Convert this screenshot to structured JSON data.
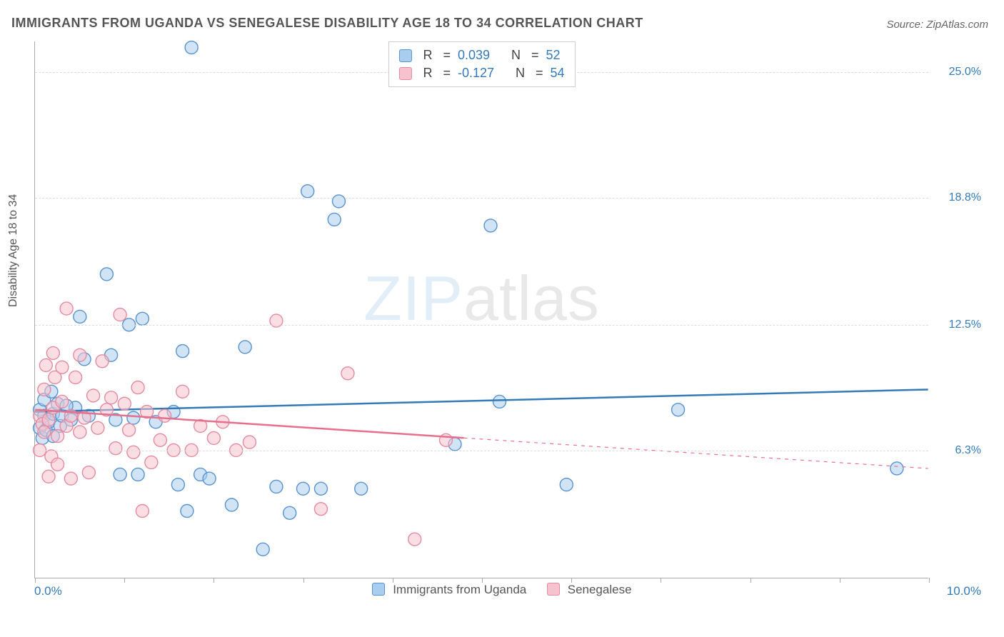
{
  "title": "IMMIGRANTS FROM UGANDA VS SENEGALESE DISABILITY AGE 18 TO 34 CORRELATION CHART",
  "source": "Source: ZipAtlas.com",
  "ylabel": "Disability Age 18 to 34",
  "watermark_a": "ZIP",
  "watermark_b": "atlas",
  "chart": {
    "type": "scatter",
    "xlim": [
      0,
      10
    ],
    "ylim": [
      0,
      26.5
    ],
    "x_tick_positions": [
      0,
      1,
      2,
      3,
      4,
      5,
      6,
      7,
      8,
      9,
      10
    ],
    "x_left_label": "0.0%",
    "x_right_label": "10.0%",
    "y_grid": [
      {
        "v": 6.3,
        "label": "6.3%"
      },
      {
        "v": 12.5,
        "label": "12.5%"
      },
      {
        "v": 18.8,
        "label": "18.8%"
      },
      {
        "v": 25.0,
        "label": "25.0%"
      }
    ],
    "marker_radius": 9,
    "marker_opacity": 0.55,
    "line_width": 2.5,
    "series": [
      {
        "name": "Immigrants from Uganda",
        "color_fill": "#a9cdee",
        "color_stroke": "#5892cf",
        "line_color": "#337ab7",
        "trend": {
          "x1": 0,
          "y1": 8.2,
          "x2": 10,
          "y2": 9.3,
          "x_solid_end": 10
        },
        "stats": {
          "R": "0.039",
          "N": "52"
        },
        "points": [
          [
            0.05,
            7.4
          ],
          [
            0.05,
            8.3
          ],
          [
            0.08,
            6.9
          ],
          [
            0.1,
            8.0
          ],
          [
            0.1,
            8.8
          ],
          [
            0.12,
            7.3
          ],
          [
            0.15,
            7.7
          ],
          [
            0.18,
            9.2
          ],
          [
            0.2,
            8.1
          ],
          [
            0.2,
            7.0
          ],
          [
            0.25,
            8.6
          ],
          [
            0.28,
            7.5
          ],
          [
            0.3,
            8.0
          ],
          [
            0.4,
            7.8
          ],
          [
            0.45,
            8.4
          ],
          [
            0.5,
            12.9
          ],
          [
            0.55,
            10.8
          ],
          [
            0.8,
            15.0
          ],
          [
            0.85,
            11.0
          ],
          [
            0.9,
            7.8
          ],
          [
            0.95,
            5.1
          ],
          [
            1.05,
            12.5
          ],
          [
            1.1,
            7.9
          ],
          [
            1.15,
            5.1
          ],
          [
            1.2,
            12.8
          ],
          [
            1.35,
            7.7
          ],
          [
            1.55,
            8.2
          ],
          [
            1.6,
            4.6
          ],
          [
            1.65,
            11.2
          ],
          [
            1.7,
            3.3
          ],
          [
            1.75,
            26.2
          ],
          [
            1.85,
            5.1
          ],
          [
            1.95,
            4.9
          ],
          [
            2.2,
            3.6
          ],
          [
            2.35,
            11.4
          ],
          [
            2.55,
            1.4
          ],
          [
            2.7,
            4.5
          ],
          [
            2.85,
            3.2
          ],
          [
            3.0,
            4.4
          ],
          [
            3.05,
            19.1
          ],
          [
            3.2,
            4.4
          ],
          [
            3.35,
            17.7
          ],
          [
            3.4,
            18.6
          ],
          [
            3.65,
            4.4
          ],
          [
            4.7,
            6.6
          ],
          [
            5.1,
            17.4
          ],
          [
            5.2,
            8.7
          ],
          [
            5.95,
            4.6
          ],
          [
            7.2,
            8.3
          ],
          [
            9.65,
            5.4
          ],
          [
            0.6,
            8.0
          ],
          [
            0.35,
            8.5
          ]
        ]
      },
      {
        "name": "Senegalese",
        "color_fill": "#f6c2ce",
        "color_stroke": "#e48aa0",
        "line_color": "#e76f8d",
        "trend": {
          "x1": 0,
          "y1": 8.3,
          "x2": 10,
          "y2": 5.4,
          "x_solid_end": 4.8
        },
        "stats": {
          "R": "-0.127",
          "N": "54"
        },
        "points": [
          [
            0.05,
            8.0
          ],
          [
            0.05,
            6.3
          ],
          [
            0.08,
            7.6
          ],
          [
            0.1,
            9.3
          ],
          [
            0.1,
            7.2
          ],
          [
            0.12,
            10.5
          ],
          [
            0.15,
            7.8
          ],
          [
            0.18,
            6.0
          ],
          [
            0.2,
            8.4
          ],
          [
            0.2,
            11.1
          ],
          [
            0.22,
            9.9
          ],
          [
            0.25,
            7.0
          ],
          [
            0.25,
            5.6
          ],
          [
            0.3,
            10.4
          ],
          [
            0.3,
            8.7
          ],
          [
            0.35,
            7.5
          ],
          [
            0.35,
            13.3
          ],
          [
            0.4,
            8.0
          ],
          [
            0.4,
            4.9
          ],
          [
            0.45,
            9.9
          ],
          [
            0.5,
            11.0
          ],
          [
            0.5,
            7.2
          ],
          [
            0.55,
            7.9
          ],
          [
            0.6,
            5.2
          ],
          [
            0.65,
            9.0
          ],
          [
            0.7,
            7.4
          ],
          [
            0.75,
            10.7
          ],
          [
            0.8,
            8.3
          ],
          [
            0.85,
            8.9
          ],
          [
            0.9,
            6.4
          ],
          [
            0.95,
            13.0
          ],
          [
            1.0,
            8.6
          ],
          [
            1.05,
            7.3
          ],
          [
            1.1,
            6.2
          ],
          [
            1.15,
            9.4
          ],
          [
            1.2,
            3.3
          ],
          [
            1.25,
            8.2
          ],
          [
            1.3,
            5.7
          ],
          [
            1.4,
            6.8
          ],
          [
            1.45,
            8.0
          ],
          [
            1.55,
            6.3
          ],
          [
            1.65,
            9.2
          ],
          [
            1.75,
            6.3
          ],
          [
            1.85,
            7.5
          ],
          [
            2.0,
            6.9
          ],
          [
            2.1,
            7.7
          ],
          [
            2.25,
            6.3
          ],
          [
            2.4,
            6.7
          ],
          [
            2.7,
            12.7
          ],
          [
            3.2,
            3.4
          ],
          [
            3.5,
            10.1
          ],
          [
            4.25,
            1.9
          ],
          [
            4.6,
            6.8
          ],
          [
            0.15,
            5.0
          ]
        ]
      }
    ]
  },
  "colors": {
    "axis": "#aaaaaa",
    "grid": "#dddddd",
    "text": "#555555",
    "stat_value": "#337ab7"
  }
}
